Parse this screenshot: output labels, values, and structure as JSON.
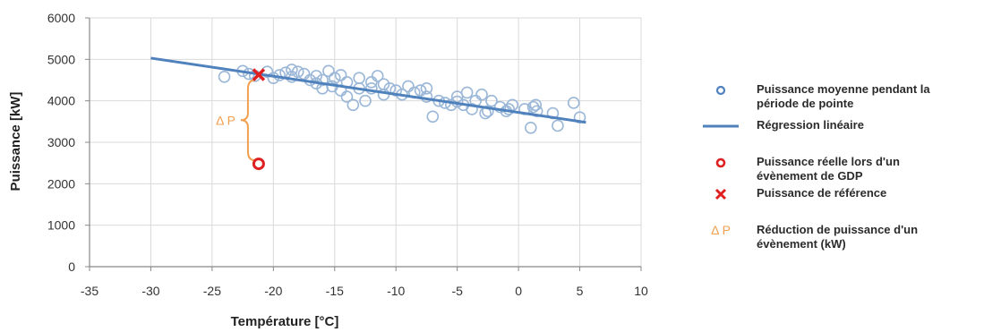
{
  "chart_data": {
    "type": "scatter",
    "xlabel": "Température [°C]",
    "ylabel": "Puissance [kW]",
    "xlim": [
      -35,
      10
    ],
    "ylim": [
      0,
      6000
    ],
    "x_ticks": [
      -35,
      -30,
      -25,
      -20,
      -15,
      -10,
      -5,
      0,
      5,
      10
    ],
    "y_ticks": [
      0,
      1000,
      2000,
      3000,
      4000,
      5000,
      6000
    ],
    "grid": true,
    "legend_position": "right",
    "colors": {
      "scatter": "#9bb7d8",
      "regression": "#4f81bd",
      "reference": "#e02020",
      "delta": "#f0a050",
      "axis": "#888888",
      "grid": "#d9d9d9"
    },
    "series": [
      {
        "name": "Puissance moyenne pendant la période de pointe",
        "kind": "scatter",
        "points": [
          [
            -24,
            4580
          ],
          [
            -22.5,
            4720
          ],
          [
            -22,
            4650
          ],
          [
            -21.5,
            4600
          ],
          [
            -20.5,
            4700
          ],
          [
            -20,
            4550
          ],
          [
            -19.5,
            4620
          ],
          [
            -19,
            4680
          ],
          [
            -18.5,
            4750
          ],
          [
            -18.5,
            4580
          ],
          [
            -18,
            4700
          ],
          [
            -17.5,
            4650
          ],
          [
            -17,
            4500
          ],
          [
            -16.5,
            4420
          ],
          [
            -16.5,
            4600
          ],
          [
            -16,
            4300
          ],
          [
            -16,
            4500
          ],
          [
            -15.5,
            4720
          ],
          [
            -15.2,
            4350
          ],
          [
            -15,
            4550
          ],
          [
            -14.5,
            4250
          ],
          [
            -14.5,
            4620
          ],
          [
            -14,
            4100
          ],
          [
            -14,
            4450
          ],
          [
            -13.5,
            3900
          ],
          [
            -13,
            4550
          ],
          [
            -13,
            4300
          ],
          [
            -12.5,
            4000
          ],
          [
            -12,
            4300
          ],
          [
            -12,
            4450
          ],
          [
            -11.5,
            4600
          ],
          [
            -11,
            4400
          ],
          [
            -11,
            4150
          ],
          [
            -10.5,
            4300
          ],
          [
            -10,
            4250
          ],
          [
            -9.5,
            4150
          ],
          [
            -9,
            4350
          ],
          [
            -8.5,
            4200
          ],
          [
            -8,
            4250
          ],
          [
            -7.5,
            4300
          ],
          [
            -7.5,
            4100
          ],
          [
            -7,
            3620
          ],
          [
            -6.5,
            4000
          ],
          [
            -6,
            3950
          ],
          [
            -5.5,
            3900
          ],
          [
            -5,
            3980
          ],
          [
            -5,
            4100
          ],
          [
            -4.5,
            3900
          ],
          [
            -4.2,
            4200
          ],
          [
            -3.8,
            3800
          ],
          [
            -3.5,
            4000
          ],
          [
            -3,
            4150
          ],
          [
            -2.7,
            3700
          ],
          [
            -2.5,
            3750
          ],
          [
            -2.2,
            4000
          ],
          [
            -1.5,
            3850
          ],
          [
            -1,
            3750
          ],
          [
            -0.8,
            3800
          ],
          [
            -0.5,
            3900
          ],
          [
            0.5,
            3800
          ],
          [
            1,
            3350
          ],
          [
            1.2,
            3850
          ],
          [
            1.4,
            3900
          ],
          [
            1.5,
            3750
          ],
          [
            2.8,
            3700
          ],
          [
            3.2,
            3400
          ],
          [
            4.5,
            3950
          ],
          [
            5,
            3600
          ]
        ]
      },
      {
        "name": "Régression linéaire",
        "kind": "line",
        "points": [
          [
            -30,
            5030
          ],
          [
            5.5,
            3480
          ]
        ]
      },
      {
        "name": "Puissance réelle lors d'un évènement de GDP",
        "kind": "marker-circle",
        "points": [
          [
            -21.2,
            2480
          ]
        ]
      },
      {
        "name": "Puissance de référence",
        "kind": "marker-x",
        "points": [
          [
            -21.2,
            4630
          ]
        ]
      }
    ],
    "annotation": {
      "label": "Δ P",
      "x": -21.2,
      "y_from": 2480,
      "y_to": 4630
    },
    "legend": [
      {
        "kind": "circle-blue",
        "text": [
          "Puissance  moyenne pendant la",
          "période de pointe"
        ]
      },
      {
        "kind": "line",
        "text": [
          "Régression  linéaire"
        ]
      },
      {
        "kind": "circle-red",
        "text": [
          "Puissance  réelle lors d'un",
          "évènement de GDP"
        ]
      },
      {
        "kind": "x-red",
        "text": [
          "Puissance  de référence"
        ]
      },
      {
        "kind": "delta",
        "label": "Δ P",
        "text": [
          "Réduction de puissance  d'un",
          "évènement (kW)"
        ]
      }
    ]
  }
}
